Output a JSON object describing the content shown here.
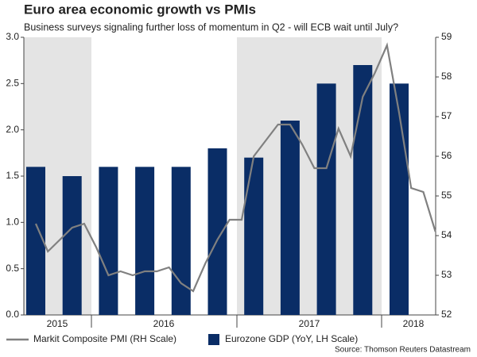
{
  "chart_data": {
    "type": "bar-line",
    "title": "Euro area economic growth vs PMIs",
    "subtitle": "Business surveys signaling further loss of momentum in Q2 - will ECB wait until July?",
    "source": "Source: Thomson Reuters Datastream",
    "years": [
      "2015",
      "2016",
      "2017",
      "2018"
    ],
    "series": [
      {
        "name": "Markit Composite PMI (RH Scale)",
        "color": "#808080",
        "axis": "y2",
        "values": [
          54.3,
          53.6,
          53.9,
          54.2,
          54.3,
          53.7,
          53.0,
          53.1,
          53.0,
          53.1,
          53.1,
          53.2,
          52.8,
          52.6,
          53.3,
          53.9,
          54.4,
          54.4,
          56.0,
          56.4,
          56.8,
          56.8,
          56.3,
          55.7,
          55.7,
          56.7,
          56.0,
          57.5,
          58.1,
          58.8,
          57.1,
          55.2,
          55.1,
          54.1
        ]
      },
      {
        "name": "Eurozone GDP (YoY, LH Scale)",
        "color": "#0a2d66",
        "values": [
          1.6,
          1.5,
          1.6,
          1.6,
          1.6,
          1.8,
          1.7,
          2.1,
          2.5,
          2.7,
          2.5
        ]
      }
    ],
    "ylim": [
      0,
      3
    ],
    "yticks": [
      {
        "value": 0,
        "label": "0.0"
      },
      {
        "value": 0.5,
        "label": "0.5"
      },
      {
        "value": 1,
        "label": "1.0"
      },
      {
        "value": 1.5,
        "label": "1.5"
      },
      {
        "value": 2,
        "label": "2.0"
      },
      {
        "value": 2.5,
        "label": "2.5"
      },
      {
        "value": 3,
        "label": "3.0"
      }
    ],
    "y2lim": [
      52,
      59
    ],
    "y2ticks": [
      52,
      53,
      54,
      55,
      56,
      57,
      58,
      59
    ]
  }
}
